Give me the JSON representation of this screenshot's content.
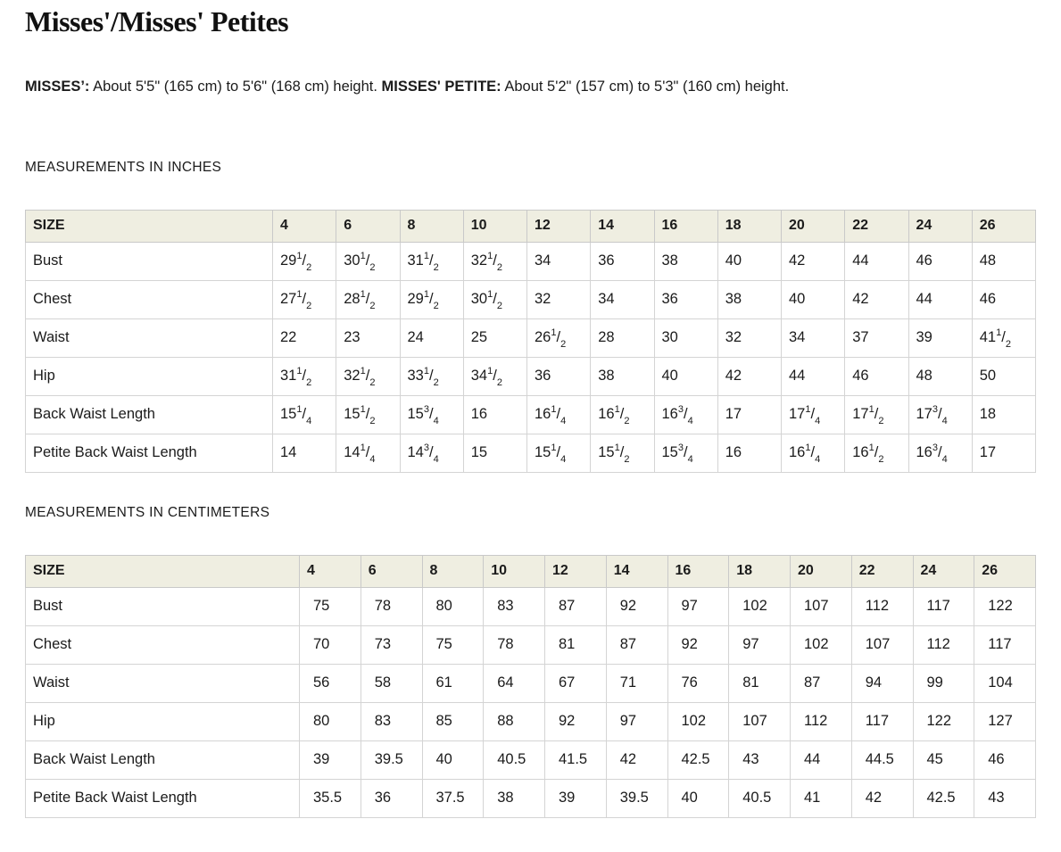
{
  "page": {
    "title": "Misses'/Misses' Petites",
    "intro": {
      "misses_label": "MISSES’:",
      "misses_text": " About 5'5\" (165 cm) to 5'6\" (168 cm) height. ",
      "petite_label": "MISSES' PETITE:",
      "petite_text": " About 5'2\" (157 cm) to 5'3\" (160 cm) height."
    }
  },
  "colors": {
    "page_bg": "#FFFFFF",
    "header_row_bg": "#EFEEE1",
    "table_border": "#CCCCCC",
    "text": "#1B1B1B"
  },
  "sections": [
    {
      "title": "MEASUREMENTS IN INCHES",
      "header": [
        "SIZE",
        "4",
        "6",
        "8",
        "10",
        "12",
        "14",
        "16",
        "18",
        "20",
        "22",
        "24",
        "26"
      ],
      "rows": [
        {
          "label": "Bust",
          "values": [
            "29 1/2",
            "30 1/2",
            "31 1/2",
            "32 1/2",
            "34",
            "36",
            "38",
            "40",
            "42",
            "44",
            "46",
            "48"
          ]
        },
        {
          "label": "Chest",
          "values": [
            "27 1/2",
            "28 1/2",
            "29 1/2",
            "30 1/2",
            "32",
            "34",
            "36",
            "38",
            "40",
            "42",
            "44",
            "46"
          ]
        },
        {
          "label": "Waist",
          "values": [
            "22",
            "23",
            "24",
            "25",
            "26 1/2",
            "28",
            "30",
            "32",
            "34",
            "37",
            "39",
            "41 1/2"
          ]
        },
        {
          "label": "Hip",
          "values": [
            "31 1/2",
            "32 1/2",
            "33 1/2",
            "34 1/2",
            "36",
            "38",
            "40",
            "42",
            "44",
            "46",
            "48",
            "50"
          ]
        },
        {
          "label": "Back Waist Length",
          "values": [
            "15 1/4",
            "15 1/2",
            "15 3/4",
            "16",
            "16 1/4",
            "16 1/2",
            "16 3/4",
            "17",
            "17 1/4",
            "17 1/2",
            "17 3/4",
            "18"
          ]
        },
        {
          "label": "Petite Back Waist Length",
          "values": [
            "14",
            "14 1/4",
            "14 3/4",
            "15",
            "15 1/4",
            "15 1/2",
            "15 3/4",
            "16",
            "16 1/4",
            "16 1/2",
            "16 3/4",
            "17"
          ]
        }
      ]
    },
    {
      "title": "MEASUREMENTS IN CENTIMETERS",
      "header": [
        "SIZE",
        "4",
        "6",
        "8",
        "10",
        "12",
        "14",
        "16",
        "18",
        "20",
        "22",
        "24",
        "26"
      ],
      "rows": [
        {
          "label": "Bust",
          "values": [
            "75",
            "78",
            "80",
            "83",
            "87",
            "92",
            "97",
            "102",
            "107",
            "112",
            "117",
            "122"
          ]
        },
        {
          "label": "Chest",
          "values": [
            "70",
            "73",
            "75",
            "78",
            "81",
            "87",
            "92",
            "97",
            "102",
            "107",
            "112",
            "117"
          ]
        },
        {
          "label": "Waist",
          "values": [
            "56",
            "58",
            "61",
            "64",
            "67",
            "71",
            "76",
            "81",
            "87",
            "94",
            "99",
            "104"
          ]
        },
        {
          "label": "Hip",
          "values": [
            "80",
            "83",
            "85",
            "88",
            "92",
            "97",
            "102",
            "107",
            "112",
            "117",
            "122",
            "127"
          ]
        },
        {
          "label": "Back Waist Length",
          "values": [
            "39",
            "39.5",
            "40",
            "40.5",
            "41.5",
            "42",
            "42.5",
            "43",
            "44",
            "44.5",
            "45",
            "46"
          ]
        },
        {
          "label": "Petite Back Waist Length",
          "values": [
            "35.5",
            "36",
            "37.5",
            "38",
            "39",
            "39.5",
            "40",
            "40.5",
            "41",
            "42",
            "42.5",
            "43"
          ]
        }
      ]
    }
  ]
}
